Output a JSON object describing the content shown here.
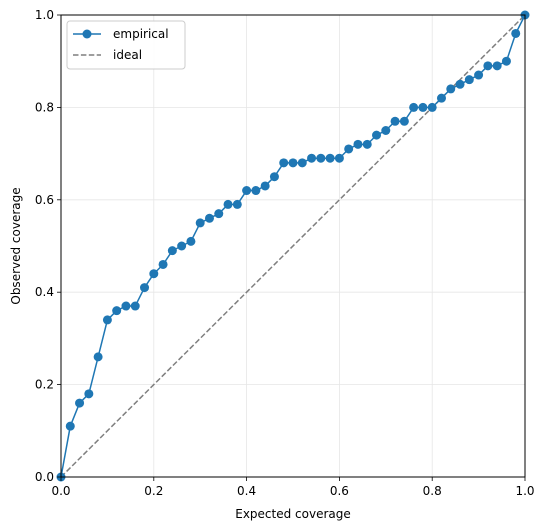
{
  "chart_data": {
    "type": "line",
    "title": "",
    "xlabel": "Expected coverage",
    "ylabel": "Observed coverage",
    "xlim": [
      0.0,
      1.0
    ],
    "ylim": [
      0.0,
      1.0
    ],
    "xticks": [
      "0.0",
      "0.2",
      "0.4",
      "0.6",
      "0.8",
      "1.0"
    ],
    "yticks": [
      "0.0",
      "0.2",
      "0.4",
      "0.6",
      "0.8",
      "1.0"
    ],
    "grid": true,
    "legend_position": "top-left",
    "series": [
      {
        "name": "empirical",
        "color": "#1f77b4",
        "style": "solid",
        "marker": "circle",
        "x": [
          0.0,
          0.02,
          0.04,
          0.06,
          0.08,
          0.1,
          0.12,
          0.14,
          0.16,
          0.18,
          0.2,
          0.22,
          0.24,
          0.26,
          0.28,
          0.3,
          0.32,
          0.34,
          0.36,
          0.38,
          0.4,
          0.42,
          0.44,
          0.46,
          0.48,
          0.5,
          0.52,
          0.54,
          0.56,
          0.58,
          0.6,
          0.62,
          0.64,
          0.66,
          0.68,
          0.7,
          0.72,
          0.74,
          0.76,
          0.78,
          0.8,
          0.82,
          0.84,
          0.86,
          0.88,
          0.9,
          0.92,
          0.94,
          0.96,
          0.98,
          1.0
        ],
        "y": [
          0.0,
          0.11,
          0.16,
          0.18,
          0.26,
          0.34,
          0.36,
          0.37,
          0.37,
          0.41,
          0.44,
          0.46,
          0.49,
          0.5,
          0.51,
          0.55,
          0.56,
          0.57,
          0.59,
          0.59,
          0.62,
          0.62,
          0.63,
          0.65,
          0.68,
          0.68,
          0.68,
          0.69,
          0.69,
          0.69,
          0.69,
          0.71,
          0.72,
          0.72,
          0.74,
          0.75,
          0.77,
          0.77,
          0.8,
          0.8,
          0.8,
          0.82,
          0.84,
          0.85,
          0.86,
          0.87,
          0.89,
          0.89,
          0.9,
          0.96,
          1.0
        ]
      },
      {
        "name": "ideal",
        "color": "#7f7f7f",
        "style": "dashed",
        "marker": "none",
        "x": [
          0.0,
          1.0
        ],
        "y": [
          0.0,
          1.0
        ]
      }
    ]
  }
}
